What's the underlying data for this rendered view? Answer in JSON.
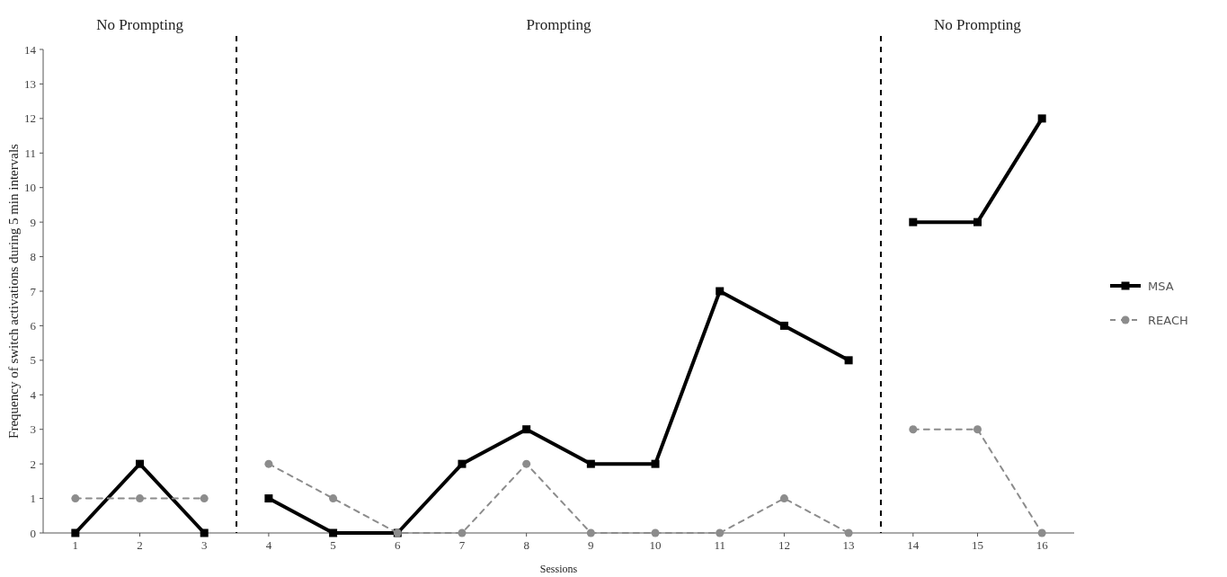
{
  "chart_data": {
    "type": "line",
    "xlabel": "Sessions",
    "ylabel": "Frequency of switch activations during 5 min intervals",
    "x": [
      1,
      2,
      3,
      4,
      5,
      6,
      7,
      8,
      9,
      10,
      11,
      12,
      13,
      14,
      15,
      16
    ],
    "xlim": [
      0.5,
      16.5
    ],
    "xticks": [
      1,
      2,
      3,
      4,
      5,
      6,
      7,
      8,
      9,
      10,
      11,
      12,
      13,
      14,
      15,
      16
    ],
    "ylim": [
      0,
      14
    ],
    "yticks": [
      0,
      1,
      2,
      3,
      4,
      5,
      6,
      7,
      8,
      9,
      10,
      11,
      12,
      13,
      14
    ],
    "series": [
      {
        "name": "MSA",
        "color": "#000000",
        "marker": "square",
        "line_style": "solid",
        "values": [
          0,
          2,
          0,
          1,
          0,
          0,
          2,
          3,
          2,
          2,
          7,
          6,
          5,
          9,
          9,
          12
        ]
      },
      {
        "name": "REACH",
        "color": "#8c8c8c",
        "marker": "circle",
        "line_style": "dashed",
        "values": [
          1,
          1,
          1,
          2,
          1,
          0,
          0,
          2,
          0,
          0,
          0,
          1,
          0,
          3,
          3,
          0
        ]
      }
    ],
    "ref_lines": [
      {
        "axis": "x",
        "value": 3.5,
        "color": "#000000",
        "line_style": "dashed"
      },
      {
        "axis": "x",
        "value": 13.5,
        "color": "#000000",
        "line_style": "dashed"
      }
    ],
    "annotations": [
      "No Prompting",
      "Prompting",
      "No Prompting"
    ],
    "grid": false,
    "legend": "right"
  }
}
